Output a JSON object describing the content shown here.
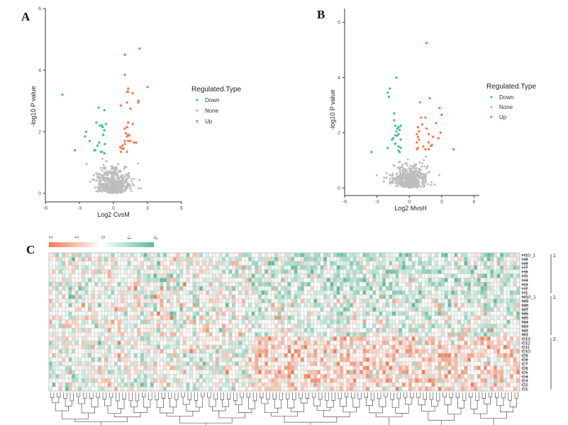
{
  "panels": {
    "A": {
      "letter": "A"
    },
    "B": {
      "letter": "B"
    },
    "C": {
      "letter": "C"
    }
  },
  "colors": {
    "Down": "#4fbf96",
    "None": "#bdbdbd",
    "Up": "#f37b52",
    "heat_low": "#f37b52",
    "heat_mid": "#ffffff",
    "heat_high": "#5bbd9a",
    "grid": "#c8c8c8"
  },
  "chart_data": [
    {
      "type": "scatter",
      "id": "volcano-A",
      "title": "",
      "xlabel": "Log2 CvsM",
      "ylabel": "-log10 P value",
      "xlim": [
        -6,
        6
      ],
      "ylim": [
        0,
        6
      ],
      "xticks": [
        "-6",
        "-3",
        "0",
        "3",
        "6"
      ],
      "yticks": [
        "0",
        "2",
        "4",
        "6"
      ],
      "legend": {
        "title": "Regulated.Type",
        "entries": [
          "Down",
          "None",
          "Up"
        ],
        "placement": "right"
      },
      "series": [
        {
          "name": "Down",
          "points": [
            [
              -4.5,
              3.2
            ],
            [
              -3.4,
              1.4
            ],
            [
              -2.4,
              2.0
            ],
            [
              -2.5,
              1.85
            ],
            [
              -2.1,
              1.7
            ],
            [
              -1.3,
              2.78
            ],
            [
              -0.8,
              2.7
            ],
            [
              -1.5,
              2.3
            ],
            [
              -1.2,
              2.2
            ],
            [
              -1.0,
              2.2
            ],
            [
              -0.65,
              2.25
            ],
            [
              -0.95,
              2.15
            ],
            [
              -0.8,
              2.05
            ],
            [
              -1.4,
              1.55
            ],
            [
              -1.25,
              1.65
            ],
            [
              -0.75,
              1.6
            ],
            [
              -1.6,
              1.4
            ],
            [
              -1.7,
              1.4
            ],
            [
              -1.1,
              1.35
            ],
            [
              -0.9,
              1.9
            ],
            [
              -0.8,
              1.3
            ],
            [
              -1.0,
              1.35
            ]
          ]
        },
        {
          "name": "Up",
          "points": [
            [
              2.3,
              4.7
            ],
            [
              1.0,
              4.5
            ],
            [
              1.0,
              3.85
            ],
            [
              3.0,
              3.45
            ],
            [
              1.3,
              3.4
            ],
            [
              1.2,
              3.3
            ],
            [
              1.3,
              3.3
            ],
            [
              1.7,
              3.25
            ],
            [
              2.2,
              3.0
            ],
            [
              2.2,
              2.95
            ],
            [
              0.65,
              2.85
            ],
            [
              1.2,
              2.95
            ],
            [
              1.5,
              2.75
            ],
            [
              1.3,
              2.3
            ],
            [
              1.7,
              2.25
            ],
            [
              1.2,
              2.15
            ],
            [
              1.0,
              2.1
            ],
            [
              1.1,
              1.95
            ],
            [
              1.3,
              1.9
            ],
            [
              1.4,
              1.88
            ],
            [
              1.2,
              1.85
            ],
            [
              1.0,
              1.7
            ],
            [
              1.3,
              1.7
            ],
            [
              1.5,
              1.7
            ],
            [
              1.8,
              1.65
            ],
            [
              2.0,
              1.65
            ],
            [
              1.0,
              1.6
            ],
            [
              0.8,
              1.55
            ],
            [
              0.6,
              1.5
            ],
            [
              0.75,
              1.45
            ],
            [
              0.65,
              1.35
            ],
            [
              1.2,
              1.35
            ],
            [
              0.9,
              1.45
            ]
          ]
        },
        {
          "name": "None",
          "generated": true,
          "count": 520,
          "x_spread": 0.9,
          "seed": 7
        }
      ]
    },
    {
      "type": "scatter",
      "id": "volcano-B",
      "title": "",
      "xlabel": "Log2 MvsH",
      "ylabel": "-log10 P value",
      "xlim": [
        -6,
        6.5
      ],
      "ylim": [
        -0.3,
        6.5
      ],
      "xticks": [
        "-6",
        "-3",
        "0",
        "3",
        "6"
      ],
      "yticks": [
        "0",
        "2",
        "4",
        "6"
      ],
      "legend": {
        "title": "Regulated.Type",
        "entries": [
          "Down",
          "None",
          "Up"
        ],
        "placement": "right"
      },
      "series": [
        {
          "name": "Down",
          "points": [
            [
              -1.2,
              4.0
            ],
            [
              -1.8,
              3.6
            ],
            [
              -2.0,
              3.45
            ],
            [
              -1.9,
              3.3
            ],
            [
              -1.4,
              2.7
            ],
            [
              -1.4,
              2.45
            ],
            [
              -1.3,
              2.25
            ],
            [
              -0.8,
              2.25
            ],
            [
              -1.0,
              2.2
            ],
            [
              -1.1,
              2.15
            ],
            [
              -0.9,
              2.1
            ],
            [
              -1.2,
              2.05
            ],
            [
              -1.0,
              1.95
            ],
            [
              -1.3,
              1.9
            ],
            [
              -1.1,
              1.9
            ],
            [
              -1.5,
              1.8
            ],
            [
              -1.6,
              1.75
            ],
            [
              -0.8,
              1.75
            ],
            [
              -1.3,
              1.6
            ],
            [
              -1.0,
              1.5
            ],
            [
              -0.8,
              1.45
            ],
            [
              -2.0,
              1.45
            ],
            [
              -1.0,
              1.35
            ],
            [
              -0.9,
              1.3
            ],
            [
              -3.5,
              1.3
            ]
          ]
        },
        {
          "name": "Up",
          "points": [
            [
              1.6,
              5.25
            ],
            [
              1.9,
              3.25
            ],
            [
              1.0,
              3.1
            ],
            [
              2.8,
              2.9
            ],
            [
              3.0,
              2.65
            ],
            [
              1.1,
              2.55
            ],
            [
              1.5,
              2.55
            ],
            [
              2.5,
              2.35
            ],
            [
              1.2,
              2.3
            ],
            [
              0.8,
              2.2
            ],
            [
              1.6,
              2.15
            ],
            [
              0.9,
              2.05
            ],
            [
              2.9,
              2.0
            ],
            [
              0.7,
              1.95
            ],
            [
              1.8,
              1.95
            ],
            [
              2.2,
              1.85
            ],
            [
              0.8,
              1.85
            ],
            [
              2.7,
              1.8
            ],
            [
              0.9,
              1.75
            ],
            [
              1.8,
              1.65
            ],
            [
              2.1,
              1.55
            ],
            [
              2.0,
              1.52
            ],
            [
              0.7,
              1.65
            ],
            [
              1.3,
              1.5
            ],
            [
              0.8,
              1.45
            ],
            [
              0.7,
              1.4
            ],
            [
              1.5,
              1.4
            ],
            [
              1.8,
              1.4
            ],
            [
              4.1,
              1.4
            ]
          ]
        },
        {
          "name": "None",
          "generated": true,
          "count": 500,
          "x_spread": 1.0,
          "seed": 13
        }
      ]
    },
    {
      "type": "heatmap",
      "id": "heatmap-C",
      "color_scale": {
        "ticks": [
          "2",
          "1",
          "0",
          "-1",
          "-2"
        ],
        "range": [
          2,
          -2
        ]
      },
      "rows": 33,
      "columns": 144,
      "row_labels": [
        "H10_1",
        "H8",
        "H9",
        "H7",
        "H6",
        "H5",
        "H4",
        "H3",
        "H2",
        "H1",
        "M10_1",
        "M9",
        "M8",
        "M7",
        "M6",
        "M5",
        "M4",
        "M3",
        "M2",
        "M1",
        "C13",
        "C12",
        "C11",
        "C10",
        "C9",
        "C8",
        "C7",
        "C6",
        "C5",
        "C4",
        "C3",
        "C2",
        "C1"
      ],
      "row_group_labels": [
        "1",
        "1",
        "2"
      ],
      "values_encoding": "digits 0-8 map to z = (d-4)/2, i.e. -2..2; negative = orange, positive = teal",
      "generated": true,
      "seed": 42,
      "dendrogram": "column",
      "column_dendrogram_groups": 2
    }
  ]
}
